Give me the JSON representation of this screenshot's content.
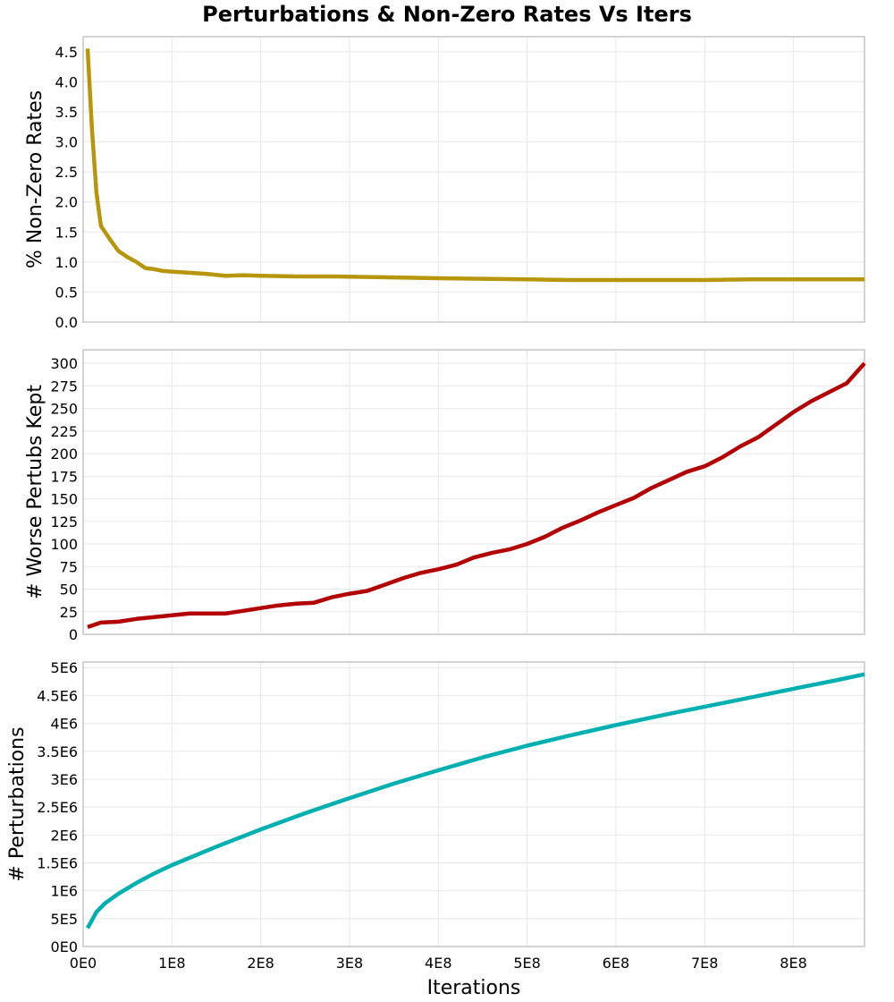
{
  "title": "Perturbations & Non-Zero Rates Vs Iters",
  "xaxis": {
    "label": "Iterations",
    "ticks": [
      "0E0",
      "1E8",
      "2E8",
      "3E8",
      "4E8",
      "5E8",
      "6E8",
      "7E8",
      "8E8"
    ],
    "tick_values": [
      0,
      100000000,
      200000000,
      300000000,
      400000000,
      500000000,
      600000000,
      700000000,
      800000000
    ],
    "range": [
      0,
      880000000
    ]
  },
  "chart_data": [
    {
      "type": "line",
      "title": "Perturbations & Non-Zero Rates Vs Iters",
      "xlabel": "Iterations",
      "ylabel": "% Non-Zero Rates",
      "color": "#b8960c",
      "ylim": [
        0,
        4.75
      ],
      "yticks": [
        "0.0",
        "0.5",
        "1.0",
        "1.5",
        "2.0",
        "2.5",
        "3.0",
        "3.5",
        "4.0",
        "4.5"
      ],
      "ytick_values": [
        0,
        0.5,
        1.0,
        1.5,
        2.0,
        2.5,
        3.0,
        3.5,
        4.0,
        4.5
      ],
      "grid": true,
      "x": [
        5000000.0,
        10000000.0,
        15000000.0,
        20000000.0,
        30000000.0,
        40000000.0,
        50000000.0,
        60000000.0,
        70000000.0,
        80000000.0,
        90000000.0,
        100000000.0,
        120000000.0,
        140000000.0,
        160000000.0,
        180000000.0,
        200000000.0,
        240000000.0,
        280000000.0,
        320000000.0,
        360000000.0,
        400000000.0,
        450000000.0,
        500000000.0,
        550000000.0,
        600000000.0,
        650000000.0,
        700000000.0,
        750000000.0,
        800000000.0,
        850000000.0,
        880000000.0
      ],
      "values": [
        4.55,
        3.2,
        2.15,
        1.6,
        1.38,
        1.18,
        1.08,
        1.0,
        0.9,
        0.88,
        0.85,
        0.84,
        0.82,
        0.8,
        0.77,
        0.78,
        0.77,
        0.76,
        0.76,
        0.75,
        0.74,
        0.73,
        0.72,
        0.71,
        0.7,
        0.7,
        0.7,
        0.7,
        0.71,
        0.71,
        0.71,
        0.71
      ]
    },
    {
      "type": "line",
      "xlabel": "Iterations",
      "ylabel": "# Worse Pertubs Kept",
      "color": "#b30000",
      "ylim": [
        0,
        315
      ],
      "yticks": [
        "0",
        "25",
        "50",
        "75",
        "100",
        "125",
        "150",
        "175",
        "200",
        "225",
        "250",
        "275",
        "300"
      ],
      "ytick_values": [
        0,
        25,
        50,
        75,
        100,
        125,
        150,
        175,
        200,
        225,
        250,
        275,
        300
      ],
      "grid": true,
      "x": [
        5000000.0,
        20000000.0,
        40000000.0,
        60000000.0,
        80000000.0,
        100000000.0,
        120000000.0,
        140000000.0,
        160000000.0,
        180000000.0,
        200000000.0,
        220000000.0,
        240000000.0,
        260000000.0,
        280000000.0,
        300000000.0,
        320000000.0,
        340000000.0,
        360000000.0,
        380000000.0,
        400000000.0,
        420000000.0,
        440000000.0,
        460000000.0,
        480000000.0,
        500000000.0,
        520000000.0,
        540000000.0,
        560000000.0,
        580000000.0,
        600000000.0,
        620000000.0,
        640000000.0,
        660000000.0,
        680000000.0,
        700000000.0,
        720000000.0,
        740000000.0,
        760000000.0,
        780000000.0,
        800000000.0,
        820000000.0,
        840000000.0,
        860000000.0,
        880000000.0
      ],
      "values": [
        8,
        13,
        14,
        17,
        19,
        21,
        23,
        23,
        23,
        26,
        29,
        32,
        34,
        35,
        41,
        45,
        48,
        55,
        62,
        68,
        72,
        77,
        85,
        90,
        94,
        100,
        108,
        118,
        126,
        135,
        143,
        151,
        162,
        171,
        180,
        186,
        196,
        208,
        218,
        232,
        246,
        258,
        268,
        278,
        300
      ]
    },
    {
      "type": "line",
      "xlabel": "Iterations",
      "ylabel": "# Perturbations",
      "color": "#00b0b0",
      "ylim": [
        0,
        5100000
      ],
      "yticks": [
        "0E0",
        "5E5",
        "1E6",
        "1.5E6",
        "2E6",
        "2.5E6",
        "3E6",
        "3.5E6",
        "4E6",
        "4.5E6",
        "5E6"
      ],
      "ytick_values": [
        0,
        500000,
        1000000,
        1500000,
        2000000,
        2500000,
        3000000,
        3500000,
        4000000,
        4500000,
        5000000
      ],
      "grid": true,
      "x": [
        5000000.0,
        15000000.0,
        25000000.0,
        40000000.0,
        60000000.0,
        80000000.0,
        100000000.0,
        150000000.0,
        200000000.0,
        250000000.0,
        300000000.0,
        350000000.0,
        400000000.0,
        450000000.0,
        500000000.0,
        550000000.0,
        600000000.0,
        650000000.0,
        700000000.0,
        750000000.0,
        800000000.0,
        850000000.0,
        880000000.0
      ],
      "values": [
        330000,
        620000,
        780000,
        950000,
        1140000,
        1310000,
        1460000,
        1790000,
        2100000,
        2390000,
        2660000,
        2920000,
        3160000,
        3390000,
        3600000,
        3790000,
        3970000,
        4140000,
        4300000,
        4460000,
        4620000,
        4780000,
        4880000
      ]
    }
  ],
  "colors": {
    "grid": "#e8e8e8",
    "frame": "#b8b8b8"
  }
}
